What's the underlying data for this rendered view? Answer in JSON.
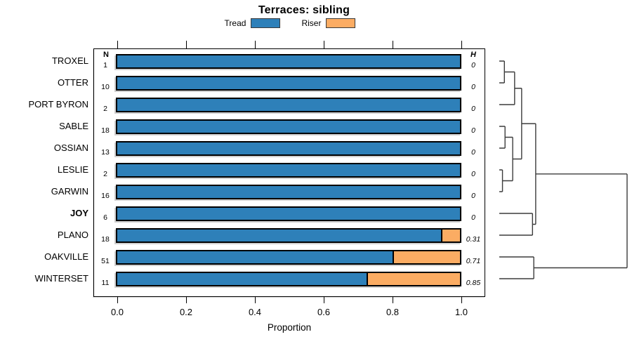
{
  "title": "Terraces: sibling",
  "legend": {
    "items": [
      {
        "label": "Tread",
        "color": "#2E80B9"
      },
      {
        "label": "Riser",
        "color": "#FBAC63"
      }
    ]
  },
  "columns": {
    "n_header": "N",
    "h_header": "H"
  },
  "axis": {
    "label": "Proportion",
    "ticks": [
      "0.0",
      "0.2",
      "0.4",
      "0.6",
      "0.8",
      "1.0"
    ],
    "tick_values": [
      0,
      0.2,
      0.4,
      0.6,
      0.8,
      1.0
    ]
  },
  "colors": {
    "tread": "#2E80B9",
    "riser": "#FBAC63",
    "bar_border": "#000000",
    "dendrogram_line": "#3c3c3c"
  },
  "chart_data": {
    "type": "bar",
    "orientation": "horizontal-stacked",
    "title": "Terraces: sibling",
    "xlabel": "Proportion",
    "xlim": [
      0,
      1
    ],
    "grid": false,
    "legend_position": "top",
    "categories": [
      "TROXEL",
      "OTTER",
      "PORT BYRON",
      "SABLE",
      "OSSIAN",
      "LESLIE",
      "GARWIN",
      "JOY",
      "PLANO",
      "OAKVILLE",
      "WINTERSET"
    ],
    "emphasized_category": "JOY",
    "n_values": [
      1,
      10,
      2,
      18,
      13,
      2,
      16,
      6,
      18,
      51,
      11
    ],
    "h_values": [
      "0",
      "0",
      "0",
      "0",
      "0",
      "0",
      "0",
      "0",
      "0.31",
      "0.71",
      "0.85"
    ],
    "series": [
      {
        "name": "Tread",
        "color": "#2E80B9",
        "values": [
          1,
          1,
          1,
          1,
          1,
          1,
          1,
          1,
          0.944,
          0.804,
          0.727
        ]
      },
      {
        "name": "Riser",
        "color": "#FBAC63",
        "values": [
          0,
          0,
          0,
          0,
          0,
          0,
          0,
          0,
          0.056,
          0.196,
          0.273
        ]
      }
    ],
    "dendrogram": {
      "merges": [
        {
          "id": "c1",
          "a": "TROXEL",
          "b": "OTTER",
          "height": 0.04
        },
        {
          "id": "c2",
          "a": "c1",
          "b": "PORT BYRON",
          "height": 0.12
        },
        {
          "id": "c3",
          "a": "SABLE",
          "b": "OSSIAN",
          "height": 0.045
        },
        {
          "id": "c4",
          "a": "LESLIE",
          "b": "GARWIN",
          "height": 0.025
        },
        {
          "id": "c5",
          "a": "c3",
          "b": "c4",
          "height": 0.105
        },
        {
          "id": "c6",
          "a": "c2",
          "b": "c5",
          "height": 0.175
        },
        {
          "id": "c7",
          "a": "JOY",
          "b": "PLANO",
          "height": 0.26
        },
        {
          "id": "c8",
          "a": "c6",
          "b": "c7",
          "height": 0.285
        },
        {
          "id": "c9",
          "a": "OAKVILLE",
          "b": "WINTERSET",
          "height": 0.27
        },
        {
          "id": "c10",
          "a": "c8",
          "b": "c9",
          "height": 1.0
        }
      ]
    }
  }
}
